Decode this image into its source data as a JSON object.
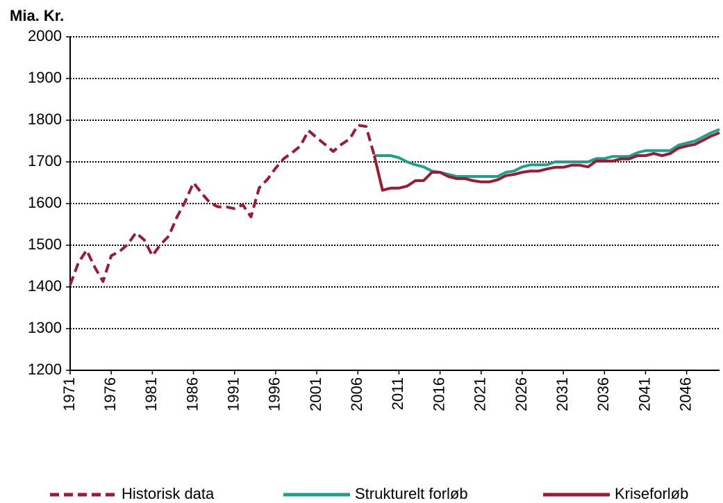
{
  "chart_data": {
    "type": "line",
    "y_label": "Mia. Kr.",
    "x": [
      1971,
      1972,
      1973,
      1974,
      1975,
      1976,
      1977,
      1978,
      1979,
      1980,
      1981,
      1982,
      1983,
      1984,
      1985,
      1986,
      1987,
      1988,
      1989,
      1990,
      1991,
      1992,
      1993,
      1994,
      1995,
      1996,
      1997,
      1998,
      1999,
      2000,
      2001,
      2002,
      2003,
      2004,
      2005,
      2006,
      2007,
      2008,
      2009,
      2010,
      2011,
      2012,
      2013,
      2014,
      2015,
      2016,
      2017,
      2018,
      2019,
      2020,
      2021,
      2022,
      2023,
      2024,
      2025,
      2026,
      2027,
      2028,
      2029,
      2030,
      2031,
      2032,
      2033,
      2034,
      2035,
      2036,
      2037,
      2038,
      2039,
      2040,
      2041,
      2042,
      2043,
      2044,
      2045,
      2046,
      2047,
      2048,
      2049,
      2050
    ],
    "xlim": [
      1971,
      2050
    ],
    "xticks": [
      1971,
      1976,
      1981,
      1986,
      1991,
      1996,
      2001,
      2006,
      2011,
      2016,
      2021,
      2026,
      2031,
      2036,
      2041,
      2046
    ],
    "ylim": [
      1200,
      2000
    ],
    "yticks": [
      1200,
      1300,
      1400,
      1500,
      1600,
      1700,
      1800,
      1900,
      2000
    ],
    "grid": true,
    "legend": "bottom",
    "series": [
      {
        "name": "Historisk data",
        "color": "#9b1b30",
        "line_style": "dashed",
        "values": [
          1405,
          1458,
          1488,
          1447,
          1413,
          1475,
          1485,
          1502,
          1530,
          1513,
          1475,
          1502,
          1522,
          1568,
          1605,
          1650,
          1625,
          1602,
          1592,
          1592,
          1588,
          1597,
          1568,
          1638,
          1658,
          1685,
          1708,
          1722,
          1738,
          1775,
          1758,
          1742,
          1725,
          1742,
          1755,
          1788,
          1785,
          1715,
          null,
          null,
          null,
          null,
          null,
          null,
          null,
          null,
          null,
          null,
          null,
          null,
          null,
          null,
          null,
          null,
          null,
          null,
          null,
          null,
          null,
          null,
          null,
          null,
          null,
          null,
          null,
          null,
          null,
          null,
          null,
          null,
          null,
          null,
          null,
          null,
          null,
          null,
          null,
          null,
          null,
          null
        ]
      },
      {
        "name": "Strukturelt forløb",
        "color": "#1fa08f",
        "line_style": "solid",
        "values": [
          null,
          null,
          null,
          null,
          null,
          null,
          null,
          null,
          null,
          null,
          null,
          null,
          null,
          null,
          null,
          null,
          null,
          null,
          null,
          null,
          null,
          null,
          null,
          null,
          null,
          null,
          null,
          null,
          null,
          null,
          null,
          null,
          null,
          null,
          null,
          null,
          null,
          1715,
          1715,
          1715,
          1710,
          1700,
          1693,
          1688,
          1678,
          1675,
          1670,
          1665,
          1665,
          1665,
          1665,
          1665,
          1665,
          1675,
          1678,
          1688,
          1693,
          1693,
          1693,
          1700,
          1700,
          1700,
          1700,
          1700,
          1708,
          1708,
          1713,
          1713,
          1713,
          1722,
          1727,
          1727,
          1727,
          1727,
          1740,
          1745,
          1750,
          1760,
          1770,
          1778
        ]
      },
      {
        "name": "Kriseforløb",
        "color": "#9b1b30",
        "line_style": "solid",
        "values": [
          null,
          null,
          null,
          null,
          null,
          null,
          null,
          null,
          null,
          null,
          null,
          null,
          null,
          null,
          null,
          null,
          null,
          null,
          null,
          null,
          null,
          null,
          null,
          null,
          null,
          null,
          null,
          null,
          null,
          null,
          null,
          null,
          null,
          null,
          null,
          null,
          null,
          1715,
          1632,
          1637,
          1637,
          1642,
          1655,
          1655,
          1675,
          1675,
          1665,
          1660,
          1660,
          1655,
          1652,
          1652,
          1657,
          1667,
          1670,
          1675,
          1678,
          1678,
          1683,
          1687,
          1687,
          1692,
          1692,
          1688,
          1702,
          1702,
          1702,
          1707,
          1707,
          1715,
          1715,
          1720,
          1715,
          1720,
          1733,
          1738,
          1742,
          1752,
          1762,
          1770
        ]
      }
    ]
  }
}
